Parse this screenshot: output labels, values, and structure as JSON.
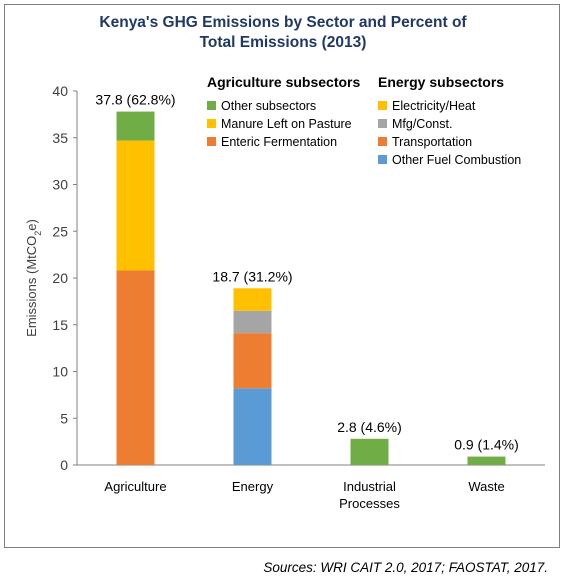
{
  "chart_data": {
    "type": "bar",
    "stacked": true,
    "title": [
      "Kenya's GHG Emissions by Sector and Percent of",
      "Total Emissions (2013)"
    ],
    "ylabel": "Emissions (MtCO2e)",
    "ylim": [
      0,
      40
    ],
    "yticks": [
      0,
      5,
      10,
      15,
      20,
      25,
      30,
      35,
      40
    ],
    "categories": [
      "Agriculture",
      "Energy",
      "Industrial Processes",
      "Waste"
    ],
    "category_labels": [
      [
        "Agriculture"
      ],
      [
        "Energy"
      ],
      [
        "Industrial",
        "Processes"
      ],
      [
        "Waste"
      ]
    ],
    "totals_labels": [
      "37.8 (62.8%)",
      "18.7 (31.2%)",
      "2.8 (4.6%)",
      "0.9 (1.4%)"
    ],
    "stacks": [
      [
        {
          "name": "Enteric Fermentation",
          "value": 20.8,
          "color": "#ed7d31"
        },
        {
          "name": "Manure Left on Pasture",
          "value": 13.9,
          "color": "#ffc000"
        },
        {
          "name": "Other subsectors",
          "value": 3.1,
          "color": "#70ad47"
        }
      ],
      [
        {
          "name": "Other Fuel Combustion",
          "value": 8.2,
          "color": "#5b9bd5"
        },
        {
          "name": "Transportation",
          "value": 5.9,
          "color": "#ed7d31"
        },
        {
          "name": "Mfg/Const.",
          "value": 2.4,
          "color": "#a5a5a5"
        },
        {
          "name": "Electricity/Heat",
          "value": 2.4,
          "color": "#ffc000"
        }
      ],
      [
        {
          "name": "Industrial Processes",
          "value": 2.8,
          "color": "#70ad47"
        }
      ],
      [
        {
          "name": "Waste",
          "value": 0.9,
          "color": "#70ad47"
        }
      ]
    ],
    "legends": [
      {
        "heading": "Agriculture subsectors",
        "items": [
          {
            "label": "Other subsectors",
            "color": "#70ad47"
          },
          {
            "label": "Manure Left on Pasture",
            "color": "#ffc000"
          },
          {
            "label": "Enteric Fermentation",
            "color": "#ed7d31"
          }
        ]
      },
      {
        "heading": "Energy subsectors",
        "items": [
          {
            "label": "Electricity/Heat",
            "color": "#ffc000"
          },
          {
            "label": "Mfg/Const.",
            "color": "#a5a5a5"
          },
          {
            "label": "Transportation",
            "color": "#ed7d31"
          },
          {
            "label": "Other Fuel Combustion",
            "color": "#5b9bd5"
          }
        ]
      }
    ],
    "grid": false
  },
  "source": "Sources: WRI CAIT 2.0, 2017; FAOSTAT, 2017."
}
